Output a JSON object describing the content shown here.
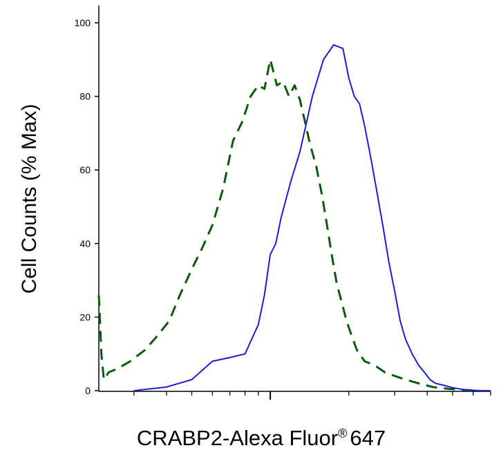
{
  "chart_data": {
    "type": "line",
    "title": "",
    "xlabel": "CRABP2-Alexa Fluor",
    "xlabel_superscript": "®",
    "xlabel_suffix": "647",
    "ylabel": "Cell Counts (% Max)",
    "xscale": "log",
    "x_tick_labels_shown": false,
    "xlim": [
      0.22,
      7
    ],
    "ylim": [
      0,
      100
    ],
    "yticks": [
      0,
      20,
      40,
      60,
      80,
      100
    ],
    "ytick_labels": [
      "0",
      "20",
      "40",
      "60",
      "80",
      "100"
    ],
    "grid": false,
    "legend": "none",
    "series": [
      {
        "style": "dashed",
        "color": "#0a5a0a",
        "x": [
          0.22,
          0.222,
          0.225,
          0.23,
          0.24,
          0.26,
          0.29,
          0.33,
          0.37,
          0.41,
          0.45,
          0.5,
          0.55,
          0.6,
          0.66,
          0.72,
          0.78,
          0.84,
          0.9,
          0.95,
          1.0,
          1.06,
          1.12,
          1.18,
          1.24,
          1.3,
          1.36,
          1.42,
          1.5,
          1.58,
          1.65,
          1.72,
          1.8,
          1.88,
          1.96,
          2.05,
          2.15,
          2.3,
          2.5,
          2.75,
          3.0,
          3.3,
          3.7,
          4.2,
          4.8,
          5.5,
          6.2
        ],
        "y": [
          26,
          20,
          10,
          3,
          5,
          6,
          8,
          11,
          15,
          19,
          26,
          33,
          39,
          45,
          55,
          68,
          73,
          80,
          83,
          82,
          90,
          83,
          84,
          80,
          83,
          79,
          73,
          67,
          61,
          53,
          45,
          37,
          29,
          24,
          19,
          15,
          11,
          8,
          7,
          5,
          4,
          3,
          2,
          1,
          0.5,
          0.2,
          0
        ]
      },
      {
        "style": "solid",
        "color": "#1a1ad8",
        "x": [
          0.3,
          0.4,
          0.5,
          0.6,
          0.7,
          0.8,
          0.9,
          0.95,
          1.0,
          1.05,
          1.1,
          1.2,
          1.3,
          1.45,
          1.6,
          1.75,
          1.9,
          2.0,
          2.1,
          2.2,
          2.3,
          2.42,
          2.55,
          2.7,
          2.85,
          3.0,
          3.15,
          3.3,
          3.5,
          3.7,
          3.9,
          4.1,
          4.3,
          4.6,
          5.0,
          5.5,
          6.0,
          6.5,
          7.0
        ],
        "y": [
          0,
          1,
          3,
          8,
          9,
          10,
          18,
          26,
          37,
          40,
          47,
          57,
          65,
          80,
          90,
          94,
          93,
          85,
          80,
          78,
          72,
          64,
          55,
          45,
          35,
          27,
          19,
          14,
          10,
          7,
          5,
          3,
          2,
          1.5,
          0.8,
          0.3,
          0.1,
          0,
          0
        ]
      }
    ]
  }
}
